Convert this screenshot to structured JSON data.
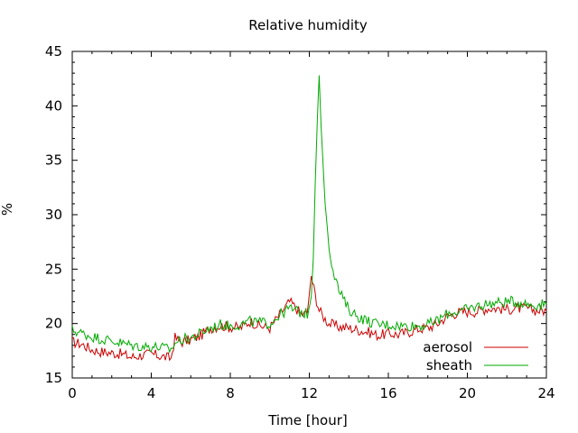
{
  "chart_data": {
    "type": "line",
    "title": "Relative humidity",
    "xlabel": "Time [hour]",
    "ylabel": "%",
    "xlim": [
      0,
      24
    ],
    "ylim": [
      15,
      45
    ],
    "xticks": [
      0,
      4,
      8,
      12,
      16,
      20,
      24
    ],
    "yticks": [
      15,
      20,
      25,
      30,
      35,
      40,
      45
    ],
    "xtick_labels": [
      "0",
      "4",
      "8",
      "12",
      "16",
      "20",
      "24"
    ],
    "ytick_labels": [
      "15",
      "20",
      "25",
      "30",
      "35",
      "40",
      "45"
    ],
    "grid": false,
    "legend_position": "bottom-right",
    "series": [
      {
        "name": "aerosol",
        "color": "#cc0000",
        "x": [
          0,
          0.5,
          1,
          1.5,
          2,
          2.5,
          3,
          3.5,
          4,
          4.5,
          5,
          5.2,
          5.5,
          6,
          6.5,
          7,
          7.5,
          8,
          8.5,
          9,
          9.5,
          10,
          10.5,
          11,
          11.3,
          11.6,
          11.9,
          12.1,
          12.3,
          12.5,
          12.8,
          13,
          13.5,
          14,
          14.5,
          15,
          15.5,
          16,
          16.5,
          17,
          17.5,
          18,
          18.5,
          19,
          19.5,
          20,
          20.5,
          21,
          21.5,
          22,
          22.5,
          23,
          23.5,
          24
        ],
        "y": [
          18.3,
          18.1,
          17.6,
          17.4,
          17.3,
          17.2,
          16.9,
          17.1,
          17.2,
          17.0,
          16.8,
          18.7,
          18.3,
          18.5,
          18.9,
          19.6,
          19.8,
          19.7,
          19.6,
          20.2,
          19.8,
          19.6,
          20.8,
          22.0,
          21.5,
          20.8,
          21.0,
          24.4,
          22.6,
          21.2,
          20.4,
          20.0,
          19.7,
          19.6,
          19.4,
          19.2,
          18.9,
          19.1,
          19.0,
          19.2,
          19.5,
          19.6,
          20.0,
          20.7,
          21.0,
          21.1,
          21.1,
          21.4,
          21.4,
          21.3,
          21.4,
          21.4,
          21.2,
          21.2
        ]
      },
      {
        "name": "sheath",
        "color": "#00aa00",
        "x": [
          0,
          0.5,
          1,
          1.5,
          2,
          2.5,
          3,
          3.5,
          4,
          4.5,
          5,
          5.2,
          5.5,
          6,
          6.5,
          7,
          7.5,
          8,
          8.5,
          9,
          9.5,
          10,
          10.5,
          11,
          11.3,
          11.6,
          11.9,
          12.1,
          12.2,
          12.3,
          12.4,
          12.5,
          12.6,
          12.8,
          13,
          13.2,
          13.5,
          14,
          14.5,
          15,
          15.5,
          16,
          16.5,
          17,
          17.5,
          18,
          18.5,
          19,
          19.5,
          20,
          20.5,
          21,
          21.5,
          22,
          22.5,
          23,
          23.5,
          24
        ],
        "y": [
          19.4,
          19.1,
          18.8,
          18.6,
          18.4,
          18.2,
          18.0,
          17.9,
          17.9,
          17.8,
          17.6,
          18.2,
          18.5,
          18.7,
          19.1,
          19.6,
          19.9,
          19.8,
          19.9,
          20.2,
          20.1,
          20.0,
          20.8,
          21.4,
          21.2,
          21.0,
          20.9,
          22.5,
          26.0,
          33.0,
          38.5,
          42.8,
          38.0,
          31.0,
          27.0,
          25.0,
          23.0,
          21.3,
          20.6,
          20.2,
          19.9,
          19.9,
          19.8,
          19.8,
          19.8,
          19.9,
          20.3,
          20.9,
          21.1,
          21.3,
          21.6,
          21.8,
          21.9,
          22.0,
          22.0,
          21.8,
          21.7,
          21.8
        ]
      }
    ]
  }
}
